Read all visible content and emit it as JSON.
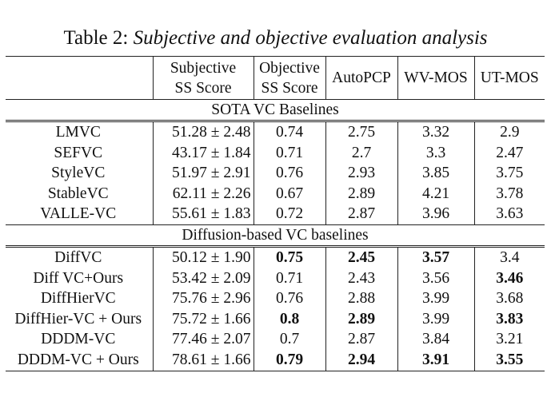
{
  "caption": {
    "label": "Table 2:",
    "title": "Subjective and objective evaluation analysis"
  },
  "headers": [
    "",
    "Subjective\nSS Score",
    "Objective\nSS Score",
    "AutoPCP",
    "WV-MOS",
    "UT-MOS"
  ],
  "groups": [
    {
      "title": "SOTA VC Baselines",
      "rows": [
        {
          "cells": [
            "LMVC",
            "51.28 ± 2.48",
            "0.74",
            "2.75",
            "3.32",
            "2.9"
          ],
          "bold": []
        },
        {
          "cells": [
            "SEFVC",
            "43.17 ± 1.84",
            "0.71",
            "2.7",
            "3.3",
            "2.47"
          ],
          "bold": []
        },
        {
          "cells": [
            "StyleVC",
            "51.97 ± 2.91",
            "0.76",
            "2.93",
            "3.85",
            "3.75"
          ],
          "bold": []
        },
        {
          "cells": [
            "StableVC",
            "62.11 ± 2.26",
            "0.67",
            "2.89",
            "4.21",
            "3.78"
          ],
          "bold": []
        },
        {
          "cells": [
            "VALLE-VC",
            "55.61 ± 1.83",
            "0.72",
            "2.87",
            "3.96",
            "3.63"
          ],
          "bold": []
        }
      ]
    },
    {
      "title": "Diffusion-based VC baselines",
      "rows": [
        {
          "cells": [
            "DiffVC",
            "50.12 ± 1.90",
            "0.75",
            "2.45",
            "3.57",
            "3.4"
          ],
          "bold": [
            2,
            3,
            4
          ]
        },
        {
          "cells": [
            "Diff VC+Ours",
            "53.42 ± 2.09",
            "0.71",
            "2.43",
            "3.56",
            "3.46"
          ],
          "bold": [
            5
          ]
        },
        {
          "cells": [
            "DiffHierVC",
            "75.76 ± 2.96",
            "0.76",
            "2.88",
            "3.99",
            "3.68"
          ],
          "bold": []
        },
        {
          "cells": [
            "DiffHier-VC + Ours",
            "75.72 ± 1.66",
            "0.8",
            "2.89",
            "3.99",
            "3.83"
          ],
          "bold": [
            2,
            3,
            5
          ]
        },
        {
          "cells": [
            "DDDM-VC",
            "77.46 ± 2.07",
            "0.7",
            "2.87",
            "3.84",
            "3.21"
          ],
          "bold": []
        },
        {
          "cells": [
            "DDDM-VC + Ours",
            "78.61 ± 1.66",
            "0.79",
            "2.94",
            "3.91",
            "3.55"
          ],
          "bold": [
            2,
            3,
            4,
            5
          ]
        }
      ]
    }
  ]
}
